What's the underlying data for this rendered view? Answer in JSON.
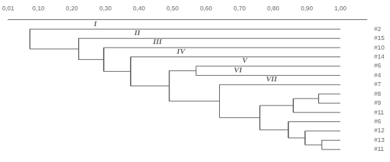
{
  "chart_data": {
    "type": "dendrogram",
    "color": "#606060",
    "grid": false,
    "xlim": [
      0.01,
      1.08
    ],
    "xticks": [
      {
        "value": 0.01,
        "label": "0,01"
      },
      {
        "value": 0.1,
        "label": "0,10"
      },
      {
        "value": 0.2,
        "label": "0,20"
      },
      {
        "value": 0.3,
        "label": "0,30"
      },
      {
        "value": 0.4,
        "label": "0,40"
      },
      {
        "value": 0.5,
        "label": "0,50"
      },
      {
        "value": 0.6,
        "label": "0,60"
      },
      {
        "value": 0.7,
        "label": "0,70"
      },
      {
        "value": 0.8,
        "label": "0,80"
      },
      {
        "value": 0.9,
        "label": "0,90"
      },
      {
        "value": 1.0,
        "label": "1,00"
      }
    ],
    "leaf_level": 1.0,
    "tree": {
      "x": 0.075,
      "children": [
        "#2",
        {
          "x": 0.22,
          "children": [
            "#15",
            {
              "x": 0.295,
              "children": [
                "#10",
                {
                  "x": 0.375,
                  "children": [
                    "#14",
                    {
                      "x": 0.49,
                      "children": [
                        {
                          "x": 0.57,
                          "children": [
                            "#6",
                            "#4"
                          ]
                        },
                        {
                          "x": 0.64,
                          "children": [
                            "#7",
                            {
                              "x": 0.76,
                              "children": [
                                {
                                  "x": 0.86,
                                  "children": [
                                    {
                                      "x": 0.935,
                                      "children": [
                                        "#8",
                                        "#9"
                                      ]
                                    },
                                    "#11"
                                  ]
                                },
                                {
                                  "x": 0.845,
                                  "children": [
                                    "#6",
                                    {
                                      "x": 0.895,
                                      "children": [
                                        "#12",
                                        {
                                          "x": 0.945,
                                          "children": [
                                            "#13",
                                            "#11"
                                          ]
                                        }
                                      ]
                                    }
                                  ]
                                }
                              ]
                            }
                          ]
                        }
                      ]
                    }
                  ]
                }
              ]
            }
          ]
        }
      ]
    },
    "annotations": [
      {
        "text": "I",
        "x": 0.27
      },
      {
        "text": "II",
        "x": 0.395
      },
      {
        "text": "III",
        "x": 0.455
      },
      {
        "text": "IV",
        "x": 0.525
      },
      {
        "text": "V",
        "x": 0.715
      },
      {
        "text": "VI",
        "x": 0.695
      },
      {
        "text": "VII",
        "x": 0.795
      }
    ]
  }
}
